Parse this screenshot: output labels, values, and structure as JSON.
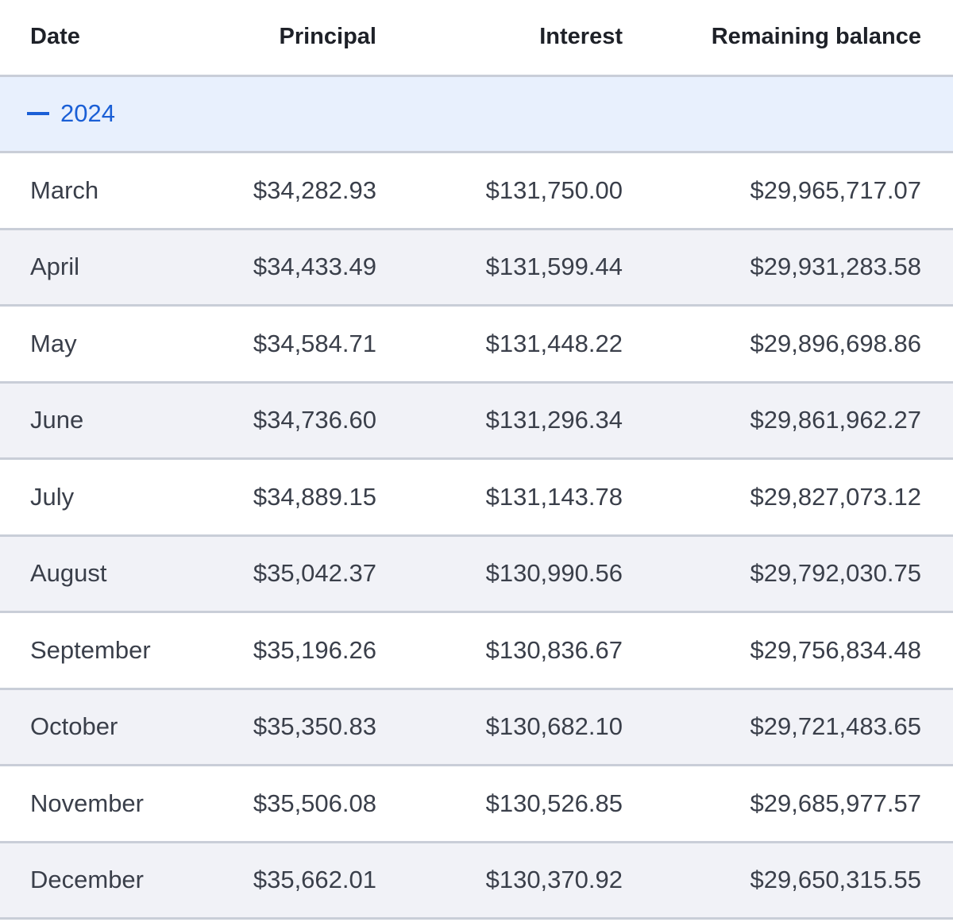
{
  "table": {
    "header": [
      "Date",
      "Principal",
      "Interest",
      "Remaining balance"
    ],
    "group": "2024",
    "rows": [
      [
        "March",
        "$34,282.93",
        "$131,750.00",
        "$29,965,717.07"
      ],
      [
        "April",
        "$34,433.49",
        "$131,599.44",
        "$29,931,283.58"
      ],
      [
        "May",
        "$34,584.71",
        "$131,448.22",
        "$29,896,698.86"
      ],
      [
        "June",
        "$34,736.60",
        "$131,296.34",
        "$29,861,962.27"
      ],
      [
        "July",
        "$34,889.15",
        "$131,143.78",
        "$29,827,073.12"
      ],
      [
        "August",
        "$35,042.37",
        "$130,990.56",
        "$29,792,030.75"
      ],
      [
        "September",
        "$35,196.26",
        "$130,836.67",
        "$29,756,834.48"
      ],
      [
        "October",
        "$35,350.83",
        "$130,682.10",
        "$29,721,483.65"
      ],
      [
        "November",
        "$35,506.08",
        "$130,526.85",
        "$29,685,977.57"
      ],
      [
        "December",
        "$35,662.01",
        "$130,370.92",
        "$29,650,315.55"
      ]
    ]
  }
}
